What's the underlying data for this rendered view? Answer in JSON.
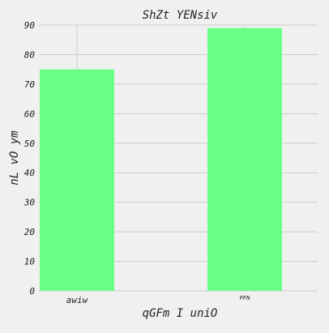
{
  "chart_data": {
    "type": "bar",
    "title": "ShZt YENsiv",
    "xlabel": "qGFm I  uniO",
    "ylabel": "nL vO  ym",
    "categories": [
      "awiw",
      "PFN"
    ],
    "values": [
      75,
      89
    ],
    "ylim": [
      0,
      90
    ],
    "yticks": [
      0,
      10,
      20,
      30,
      40,
      50,
      60,
      70,
      80,
      90
    ],
    "grid": true,
    "bar_color": "#6aff86",
    "background_color": "#f0f0f0",
    "grid_color": "#cccccc"
  }
}
